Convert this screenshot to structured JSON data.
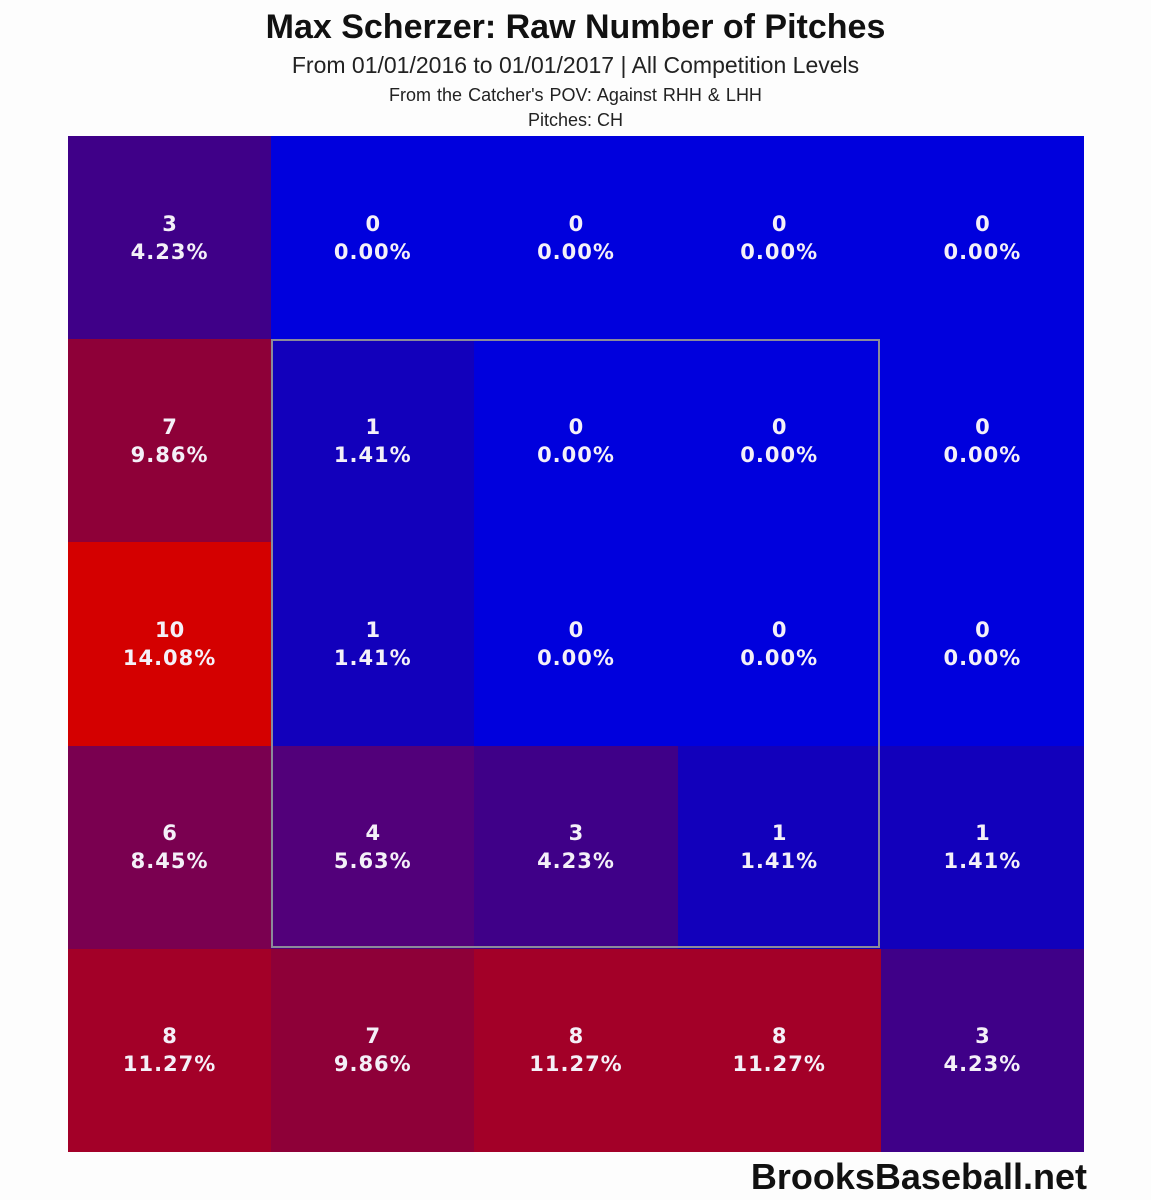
{
  "header": {
    "title": "Max Scherzer: Raw Number of Pitches",
    "subtitle": "From 01/01/2016 to 01/01/2017 | All Competition Levels",
    "pov": "From the Catcher's POV:   Against RHH & LHH",
    "pitches": "Pitches:  CH"
  },
  "footer": {
    "brand": "BrooksBaseball.net"
  },
  "colors": {
    "low": "#0000dd",
    "high": "#dd0000",
    "zone_border": "#8a8a9a"
  },
  "cells": [
    {
      "count": "3",
      "pct": "4.23%",
      "color": "#3f0088"
    },
    {
      "count": "0",
      "pct": "0.00%",
      "color": "#0000dd"
    },
    {
      "count": "0",
      "pct": "0.00%",
      "color": "#0000dd"
    },
    {
      "count": "0",
      "pct": "0.00%",
      "color": "#0000dd"
    },
    {
      "count": "0",
      "pct": "0.00%",
      "color": "#0000dd"
    },
    {
      "count": "7",
      "pct": "9.86%",
      "color": "#8e0038"
    },
    {
      "count": "1",
      "pct": "1.41%",
      "color": "#1200bb"
    },
    {
      "count": "0",
      "pct": "0.00%",
      "color": "#0000dd"
    },
    {
      "count": "0",
      "pct": "0.00%",
      "color": "#0000dd"
    },
    {
      "count": "0",
      "pct": "0.00%",
      "color": "#0000dd"
    },
    {
      "count": "10",
      "pct": "14.08%",
      "color": "#d40000"
    },
    {
      "count": "1",
      "pct": "1.41%",
      "color": "#1200bb"
    },
    {
      "count": "0",
      "pct": "0.00%",
      "color": "#0000dd"
    },
    {
      "count": "0",
      "pct": "0.00%",
      "color": "#0000dd"
    },
    {
      "count": "0",
      "pct": "0.00%",
      "color": "#0000dd"
    },
    {
      "count": "6",
      "pct": "8.45%",
      "color": "#7a0050"
    },
    {
      "count": "4",
      "pct": "5.63%",
      "color": "#52007a"
    },
    {
      "count": "3",
      "pct": "4.23%",
      "color": "#3f0088"
    },
    {
      "count": "1",
      "pct": "1.41%",
      "color": "#1200bb"
    },
    {
      "count": "1",
      "pct": "1.41%",
      "color": "#1200bb"
    },
    {
      "count": "8",
      "pct": "11.27%",
      "color": "#a30028"
    },
    {
      "count": "7",
      "pct": "9.86%",
      "color": "#8e0038"
    },
    {
      "count": "8",
      "pct": "11.27%",
      "color": "#a30028"
    },
    {
      "count": "8",
      "pct": "11.27%",
      "color": "#a30028"
    },
    {
      "count": "3",
      "pct": "4.23%",
      "color": "#3f0088"
    }
  ],
  "chart_data": {
    "type": "heatmap",
    "title": "Max Scherzer: Raw Number of Pitches",
    "subtitle": "From 01/01/2016 to 01/01/2017 | All Competition Levels",
    "annotations": [
      "From the Catcher's POV:   Against RHH & LHH",
      "Pitches:  CH",
      "BrooksBaseball.net"
    ],
    "rows": 5,
    "cols": 5,
    "counts": [
      [
        3,
        0,
        0,
        0,
        0
      ],
      [
        7,
        1,
        0,
        0,
        0
      ],
      [
        10,
        1,
        0,
        0,
        0
      ],
      [
        6,
        4,
        3,
        1,
        1
      ],
      [
        8,
        7,
        8,
        8,
        3
      ]
    ],
    "percentages": [
      [
        4.23,
        0.0,
        0.0,
        0.0,
        0.0
      ],
      [
        9.86,
        1.41,
        0.0,
        0.0,
        0.0
      ],
      [
        14.08,
        1.41,
        0.0,
        0.0,
        0.0
      ],
      [
        8.45,
        5.63,
        4.23,
        1.41,
        1.41
      ],
      [
        11.27,
        9.86,
        11.27,
        11.27,
        4.23
      ]
    ],
    "strike_zone": {
      "rows": [
        1,
        3
      ],
      "cols": [
        1,
        3
      ]
    },
    "colorscale": [
      "#0000dd",
      "#dd0000"
    ],
    "grid": false,
    "legend": "none"
  }
}
